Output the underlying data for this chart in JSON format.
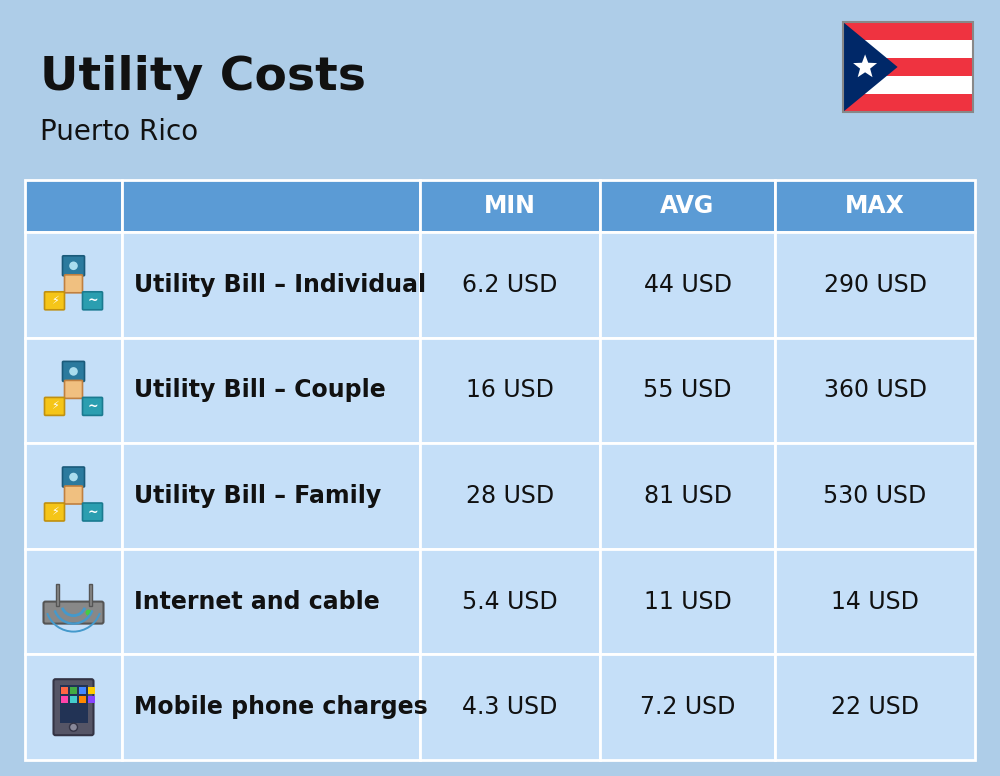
{
  "title": "Utility Costs",
  "subtitle": "Puerto Rico",
  "background_color": "#aecde8",
  "header_bg_color": "#5b9bd5",
  "header_text_color": "#ffffff",
  "row_bg_color": "#c5dff8",
  "col_headers": [
    "MIN",
    "AVG",
    "MAX"
  ],
  "rows": [
    {
      "label": "Utility Bill – Individual",
      "min": "6.2 USD",
      "avg": "44 USD",
      "max": "290 USD"
    },
    {
      "label": "Utility Bill – Couple",
      "min": "16 USD",
      "avg": "55 USD",
      "max": "360 USD"
    },
    {
      "label": "Utility Bill – Family",
      "min": "28 USD",
      "avg": "81 USD",
      "max": "530 USD"
    },
    {
      "label": "Internet and cable",
      "min": "5.4 USD",
      "avg": "11 USD",
      "max": "14 USD"
    },
    {
      "label": "Mobile phone charges",
      "min": "4.3 USD",
      "avg": "7.2 USD",
      "max": "22 USD"
    }
  ],
  "title_fontsize": 34,
  "subtitle_fontsize": 20,
  "header_fontsize": 17,
  "cell_fontsize": 17,
  "label_fontsize": 17,
  "flag_colors": {
    "red": "#EF3340",
    "white": "#FFFFFF",
    "blue": "#002868"
  }
}
